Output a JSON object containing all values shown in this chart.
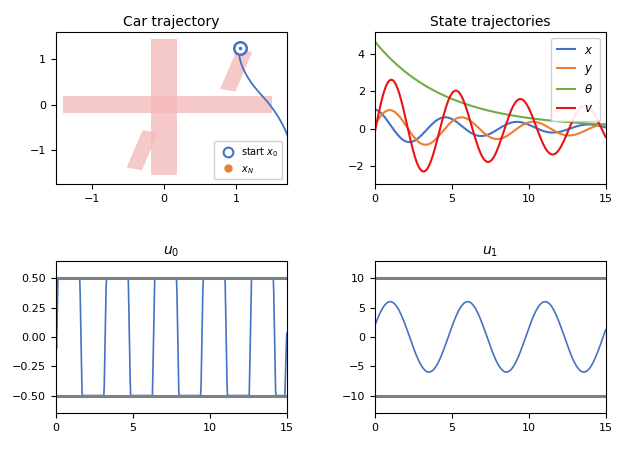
{
  "title_car": "Car trajectory",
  "title_state": "State trajectories",
  "title_u0": "$u_0$",
  "title_u1": "$u_1$",
  "legend_labels": [
    "$x$",
    "$y$",
    "$\\theta$",
    "$v$"
  ],
  "legend_colors": [
    "#4472c4",
    "#ed7d31",
    "#70ad47",
    "#e81313"
  ],
  "car_color": "#4472c4",
  "constraint_color": "#f4b8b8",
  "u0_bound": 0.5,
  "u1_bound": 10.0,
  "u0_ylim": [
    -0.65,
    0.65
  ],
  "u1_ylim": [
    -13,
    13
  ],
  "state_ylim": [
    -3.0,
    5.2
  ],
  "car_xlim": [
    -1.5,
    1.7
  ],
  "car_ylim": [
    -1.75,
    1.6
  ],
  "t_max": 15,
  "n_points": 500
}
